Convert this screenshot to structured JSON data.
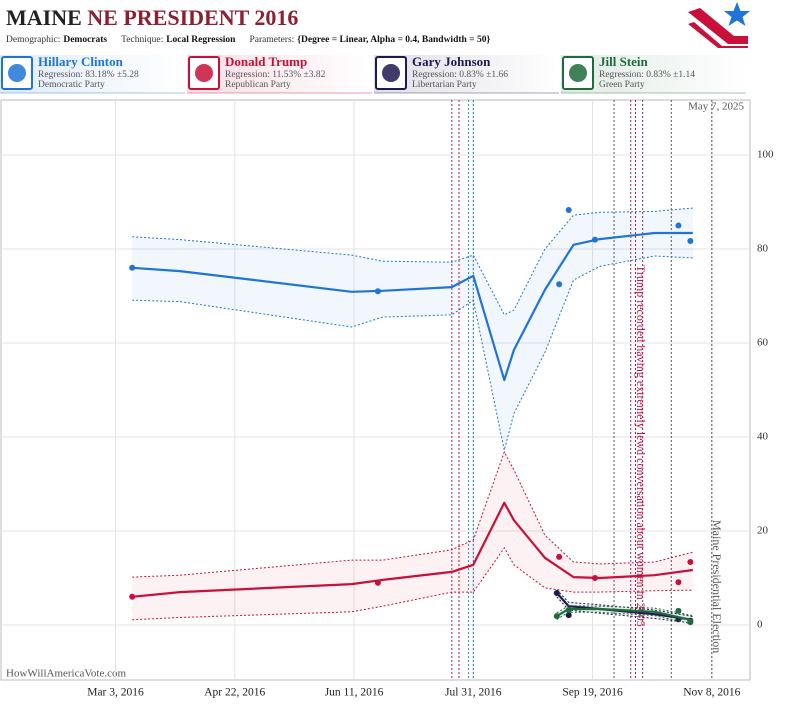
{
  "header": {
    "title": {
      "state": "MAINE",
      "race": "NE PRESIDENT 2016"
    },
    "params": [
      {
        "label": "Demographic:",
        "value": "Democrats"
      },
      {
        "label": "Technique:",
        "value": "Local Regression"
      },
      {
        "label": "Parameters:",
        "value": "{Degree = Linear, Alpha = 0.4, Bandwidth = 50}"
      }
    ]
  },
  "chart_data": {
    "type": "line",
    "xlim": [
      "2016-01-15",
      "2016-11-24"
    ],
    "xticks": [
      {
        "value": "2016-03-03",
        "label": "Mar 3, 2016"
      },
      {
        "value": "2016-04-22",
        "label": "Apr 22, 2016"
      },
      {
        "value": "2016-06-11",
        "label": "Jun 11, 2016"
      },
      {
        "value": "2016-07-31",
        "label": "Jul 31, 2016"
      },
      {
        "value": "2016-09-19",
        "label": "Sep 19, 2016"
      },
      {
        "value": "2016-11-08",
        "label": "Nov 8, 2016"
      }
    ],
    "ylim": [
      -11.7,
      111.7
    ],
    "yticks": [
      0,
      20,
      40,
      60,
      80,
      100
    ],
    "grid": true,
    "series": [
      {
        "name": "Hillary Clinton",
        "regression": "Regression: 83.18% ±5.28",
        "party": "Democratic Party",
        "color": "#1f74d6",
        "poll_x": [
          "2016-03-10",
          "2016-06-21",
          "2016-09-05",
          "2016-09-09",
          "2016-09-20",
          "2016-10-25",
          "2016-10-30"
        ],
        "poll_values": [
          76,
          71,
          72.5,
          88.3,
          82,
          85,
          81.7
        ],
        "trend_x": [
          "2016-03-10",
          "2016-03-30",
          "2016-06-10",
          "2016-06-23",
          "2016-07-22",
          "2016-07-31",
          "2016-08-13",
          "2016-08-17",
          "2016-08-30",
          "2016-09-11",
          "2016-09-22",
          "2016-10-15",
          "2016-10-31"
        ],
        "trend_values": [
          76,
          75.3,
          70.9,
          71.1,
          71.9,
          74.3,
          52.1,
          58.5,
          71.3,
          80.9,
          82.1,
          83.4,
          83.4
        ],
        "upper": [
          82.6,
          82,
          78.7,
          77.4,
          77.2,
          78.7,
          66,
          67,
          80,
          87.2,
          87.8,
          88,
          88.7
        ],
        "lower": [
          69.1,
          68.8,
          63.4,
          65.5,
          66,
          69.1,
          37.2,
          45,
          58,
          73.4,
          76.3,
          78.5,
          78.1
        ]
      },
      {
        "name": "Donald Trump",
        "regression": "Regression: 11.53% ±3.82",
        "party": "Republican Party",
        "color": "#c8103a",
        "poll_x": [
          "2016-03-10",
          "2016-06-21",
          "2016-09-05",
          "2016-09-20",
          "2016-10-25",
          "2016-10-30"
        ],
        "poll_values": [
          6,
          9,
          14.5,
          10,
          9.1,
          13.4
        ],
        "trend_x": [
          "2016-03-10",
          "2016-03-30",
          "2016-06-10",
          "2016-06-23",
          "2016-07-22",
          "2016-07-31",
          "2016-08-13",
          "2016-08-17",
          "2016-08-30",
          "2016-09-11",
          "2016-09-22",
          "2016-10-15",
          "2016-10-31"
        ],
        "trend_values": [
          6,
          7,
          8.7,
          9.6,
          11.3,
          12.8,
          26,
          22.3,
          14.3,
          10.2,
          10,
          10.6,
          11.7
        ],
        "upper": [
          10.2,
          10.6,
          13.8,
          13.8,
          16,
          18.1,
          36.8,
          33,
          19.1,
          13.4,
          13,
          13.4,
          15.5
        ],
        "lower": [
          1.1,
          1.6,
          2.8,
          4,
          7,
          7,
          16.4,
          12.8,
          7.9,
          7,
          7,
          7.3,
          7.4
        ]
      },
      {
        "name": "Gary Johnson",
        "regression": "Regression: 0.83% ±1.66",
        "party": "Libertarian Party",
        "color": "#1c1a4e",
        "poll_x": [
          "2016-09-04",
          "2016-09-09",
          "2016-10-25",
          "2016-10-30"
        ],
        "poll_values": [
          6.8,
          2.1,
          1.2,
          0.9
        ],
        "trend_x": [
          "2016-09-04",
          "2016-09-09",
          "2016-09-22",
          "2016-10-15",
          "2016-10-31"
        ],
        "trend_values": [
          6.8,
          4,
          3.4,
          2.3,
          1.1
        ],
        "upper": [
          7.5,
          4.8,
          4.3,
          3.2,
          1.8
        ],
        "lower": [
          6,
          3.2,
          2.5,
          1.4,
          0.4
        ]
      },
      {
        "name": "Jill Stein",
        "regression": "Regression: 0.83% ±1.14",
        "party": "Green Party",
        "color": "#1f6b3c",
        "poll_x": [
          "2016-09-04",
          "2016-09-09",
          "2016-10-25",
          "2016-10-30"
        ],
        "poll_values": [
          1.9,
          3.2,
          3,
          0.6
        ],
        "trend_x": [
          "2016-09-04",
          "2016-09-09",
          "2016-09-22",
          "2016-10-15",
          "2016-10-31"
        ],
        "trend_values": [
          1.9,
          3.4,
          3.4,
          2.8,
          1
        ],
        "upper": [
          2.6,
          4.1,
          4,
          3.6,
          2
        ],
        "lower": [
          1.2,
          2.7,
          2.7,
          2,
          0.2
        ]
      }
    ],
    "events": [
      {
        "date": "2016-07-22",
        "color": "#8a2a6a"
      },
      {
        "date": "2016-07-25",
        "color": "#c8103a"
      },
      {
        "date": "2016-07-29",
        "color": "#2a9aa0"
      },
      {
        "date": "2016-07-31",
        "color": "#1f74d6"
      },
      {
        "date": "2016-09-28",
        "color": "#555555"
      },
      {
        "date": "2016-10-05",
        "color": "#8a2a6a"
      },
      {
        "date": "2016-10-07",
        "color": "#c8103a"
      },
      {
        "date": "2016-10-10",
        "color": "#8a2a6a"
      },
      {
        "date": "2016-10-22",
        "color": "#555555"
      },
      {
        "date": "2016-11-08",
        "color": "#555555"
      }
    ],
    "annotations": [
      {
        "date": "2016-10-07",
        "text": "Trump recorded having extremely lewd conversation about women in 2005",
        "color": "#c8103a"
      },
      {
        "date": "2016-11-08",
        "text": "Maine Presidential Election",
        "color": "#555555"
      }
    ]
  },
  "footer": {
    "date": "May 7, 2025",
    "site": "HowWillAmericaVote.com"
  }
}
